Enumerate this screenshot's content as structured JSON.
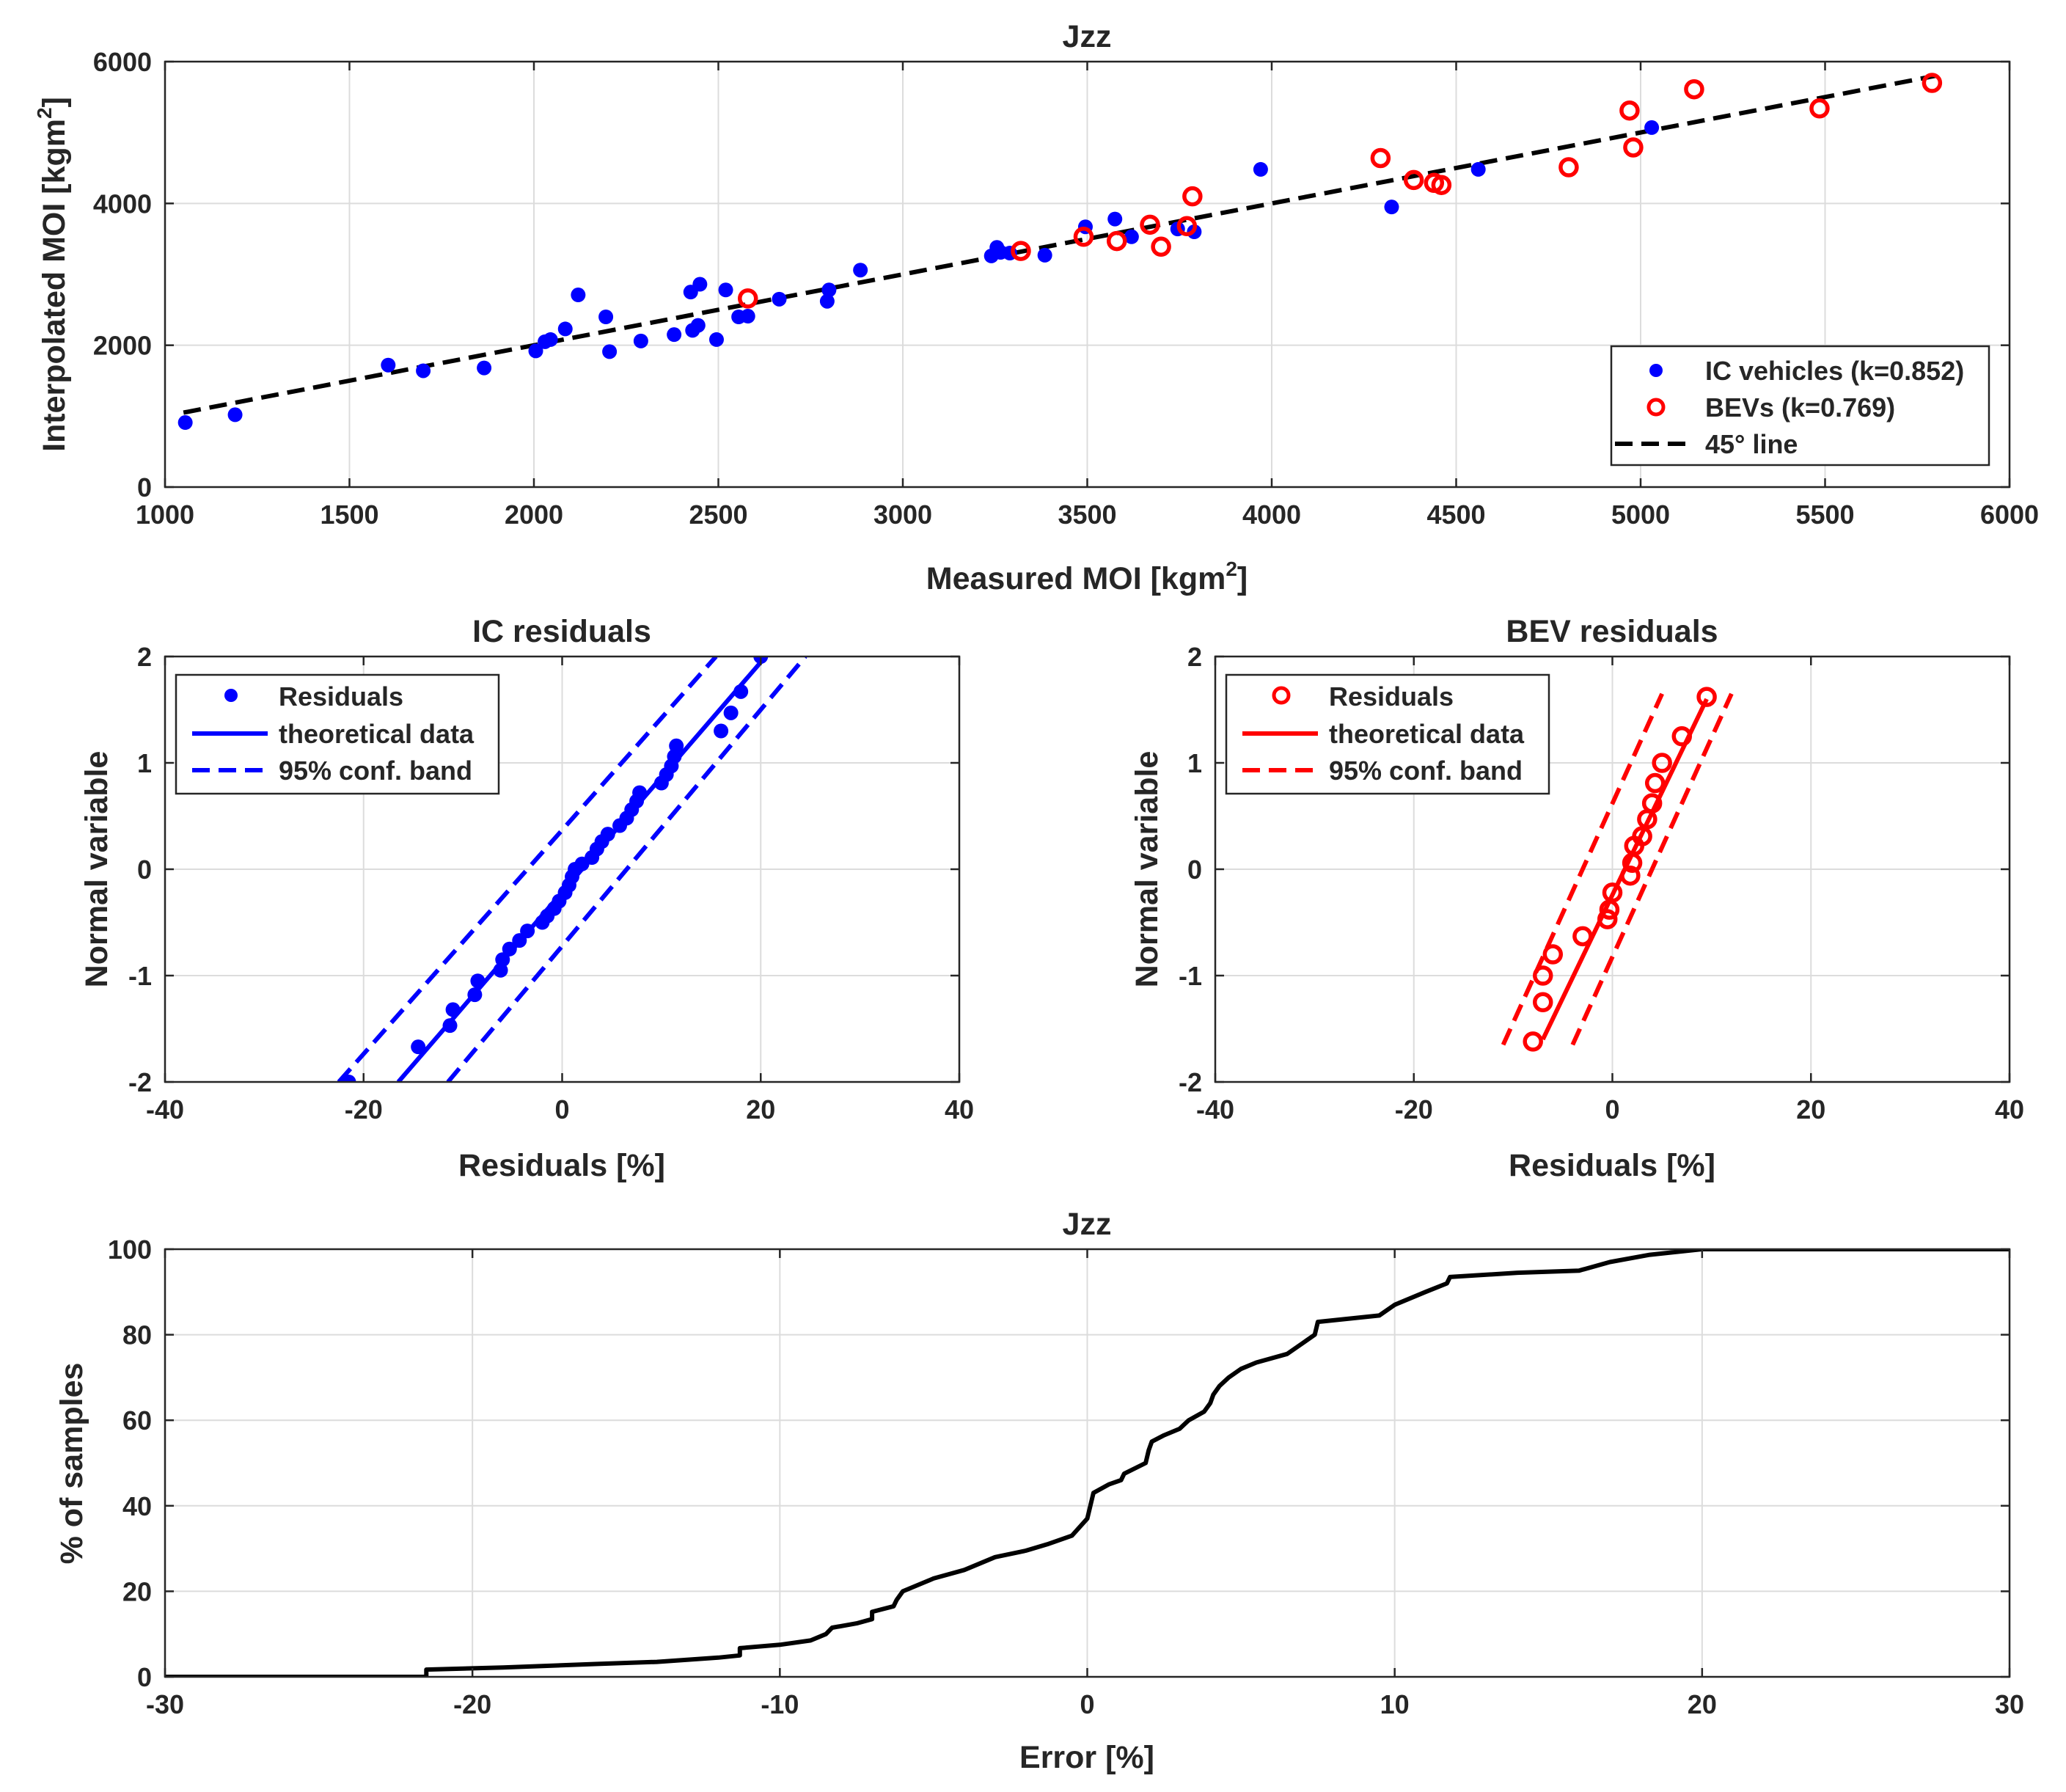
{
  "chart_data": [
    {
      "type": "scatter",
      "title": "Jzz",
      "xlabel": "Measured MOI [kgm",
      "xlabel_sup": "2",
      "xlabel_end": "]",
      "ylabel": "Interpolated MOI [kgm",
      "ylabel_sup": "2",
      "ylabel_end": "]",
      "xlim": [
        1000,
        6000
      ],
      "ylim": [
        0,
        6000
      ],
      "xticks": [
        1000,
        1500,
        2000,
        2500,
        3000,
        3500,
        4000,
        4500,
        5000,
        5500,
        6000
      ],
      "yticks": [
        0,
        2000,
        4000,
        6000
      ],
      "grid": true,
      "legend_position": "bottom-right",
      "series": [
        {
          "name": "IC vehicles (k=0.852)",
          "marker": "filled-circle",
          "color": "#0000ff",
          "points": [
            [
              1055,
              910
            ],
            [
              1190,
              1020
            ],
            [
              1605,
              1720
            ],
            [
              1700,
              1640
            ],
            [
              1865,
              1680
            ],
            [
              2005,
              1920
            ],
            [
              2030,
              2050
            ],
            [
              2045,
              2080
            ],
            [
              2085,
              2230
            ],
            [
              2120,
              2710
            ],
            [
              2195,
              2400
            ],
            [
              2205,
              1910
            ],
            [
              2290,
              2060
            ],
            [
              2380,
              2150
            ],
            [
              2425,
              2750
            ],
            [
              2430,
              2210
            ],
            [
              2445,
              2280
            ],
            [
              2450,
              2860
            ],
            [
              2495,
              2080
            ],
            [
              2520,
              2780
            ],
            [
              2555,
              2400
            ],
            [
              2580,
              2410
            ],
            [
              2665,
              2650
            ],
            [
              2795,
              2620
            ],
            [
              2800,
              2780
            ],
            [
              2885,
              3060
            ],
            [
              3240,
              3260
            ],
            [
              3255,
              3380
            ],
            [
              3265,
              3310
            ],
            [
              3290,
              3300
            ],
            [
              3385,
              3270
            ],
            [
              3495,
              3670
            ],
            [
              3575,
              3780
            ],
            [
              3620,
              3530
            ],
            [
              3745,
              3640
            ],
            [
              3790,
              3600
            ],
            [
              3970,
              4480
            ],
            [
              4325,
              3950
            ],
            [
              4560,
              4480
            ],
            [
              5030,
              5070
            ]
          ]
        },
        {
          "name": "BEVs (k=0.769)",
          "marker": "open-circle",
          "color": "#ff0000",
          "points": [
            [
              2580,
              2660
            ],
            [
              3320,
              3330
            ],
            [
              3490,
              3530
            ],
            [
              3580,
              3470
            ],
            [
              3670,
              3700
            ],
            [
              3700,
              3390
            ],
            [
              3770,
              3680
            ],
            [
              3785,
              4100
            ],
            [
              4295,
              4640
            ],
            [
              4385,
              4330
            ],
            [
              4440,
              4290
            ],
            [
              4460,
              4260
            ],
            [
              4805,
              4510
            ],
            [
              4970,
              5310
            ],
            [
              4980,
              4790
            ],
            [
              5145,
              5610
            ],
            [
              5485,
              5340
            ],
            [
              5790,
              5700
            ]
          ]
        },
        {
          "name": "45° line",
          "style": "dashed",
          "color": "#000000",
          "points": [
            [
              1050,
              1050
            ],
            [
              5800,
              5800
            ]
          ]
        }
      ]
    },
    {
      "type": "scatter",
      "title": "IC residuals",
      "xlabel": "Residuals [%]",
      "ylabel": "Normal variable",
      "xlim": [
        -40,
        40
      ],
      "ylim": [
        -2,
        2
      ],
      "xticks": [
        -40,
        -20,
        0,
        20,
        40
      ],
      "yticks": [
        -2,
        -1,
        0,
        1,
        2
      ],
      "grid": true,
      "legend_position": "top-left",
      "color": "#0000ff",
      "series": [
        {
          "name": "Residuals",
          "marker": "filled-circle",
          "points": [
            [
              -21.5,
              -2.0
            ],
            [
              -14.5,
              -1.67
            ],
            [
              -11.3,
              -1.47
            ],
            [
              -11.0,
              -1.32
            ],
            [
              -8.8,
              -1.18
            ],
            [
              -8.5,
              -1.05
            ],
            [
              -6.2,
              -0.95
            ],
            [
              -6.0,
              -0.85
            ],
            [
              -5.3,
              -0.75
            ],
            [
              -4.3,
              -0.67
            ],
            [
              -3.5,
              -0.58
            ],
            [
              -2.0,
              -0.5
            ],
            [
              -1.5,
              -0.44
            ],
            [
              -0.8,
              -0.37
            ],
            [
              -0.3,
              -0.3
            ],
            [
              0.3,
              -0.22
            ],
            [
              0.7,
              -0.15
            ],
            [
              1.0,
              -0.07
            ],
            [
              1.3,
              0.0
            ],
            [
              2.0,
              0.05
            ],
            [
              3.0,
              0.11
            ],
            [
              3.5,
              0.19
            ],
            [
              4.0,
              0.26
            ],
            [
              4.6,
              0.33
            ],
            [
              5.8,
              0.41
            ],
            [
              6.5,
              0.48
            ],
            [
              7.0,
              0.56
            ],
            [
              7.5,
              0.64
            ],
            [
              7.8,
              0.72
            ],
            [
              10.0,
              0.81
            ],
            [
              10.5,
              0.89
            ],
            [
              11.0,
              0.97
            ],
            [
              11.3,
              1.06
            ],
            [
              11.5,
              1.16
            ],
            [
              16.0,
              1.3
            ],
            [
              17.0,
              1.47
            ],
            [
              18.0,
              1.67
            ],
            [
              20.0,
              2.0
            ]
          ]
        },
        {
          "name": "theoretical data",
          "style": "solid",
          "points": [
            [
              -16.5,
              -2.0
            ],
            [
              20.5,
              2.0
            ]
          ]
        },
        {
          "name": "95% conf. band",
          "style": "dashed",
          "points": [
            [
              -22.5,
              -2.0
            ],
            [
              15.5,
              2.0
            ]
          ]
        },
        {
          "name": "",
          "style": "dashed",
          "points": [
            [
              -11.5,
              -2.0
            ],
            [
              24.5,
              2.0
            ]
          ]
        }
      ]
    },
    {
      "type": "scatter",
      "title": "BEV residuals",
      "xlabel": "Residuals [%]",
      "ylabel": "Normal variable",
      "xlim": [
        -40,
        40
      ],
      "ylim": [
        -2,
        2
      ],
      "xticks": [
        -40,
        -20,
        0,
        20,
        40
      ],
      "yticks": [
        -2,
        -1,
        0,
        1,
        2
      ],
      "grid": true,
      "legend_position": "top-left",
      "color": "#ff0000",
      "series": [
        {
          "name": "Residuals",
          "marker": "open-circle",
          "points": [
            [
              -8.0,
              -1.62
            ],
            [
              -7.0,
              -1.25
            ],
            [
              -7.0,
              -1.0
            ],
            [
              -6.0,
              -0.8
            ],
            [
              -3.0,
              -0.63
            ],
            [
              -0.5,
              -0.47
            ],
            [
              -0.3,
              -0.38
            ],
            [
              0.0,
              -0.22
            ],
            [
              1.8,
              -0.06
            ],
            [
              2.0,
              0.06
            ],
            [
              2.2,
              0.22
            ],
            [
              3.0,
              0.31
            ],
            [
              3.5,
              0.47
            ],
            [
              4.0,
              0.62
            ],
            [
              4.3,
              0.81
            ],
            [
              5.0,
              1.0
            ],
            [
              7.0,
              1.25
            ],
            [
              9.5,
              1.62
            ]
          ]
        },
        {
          "name": "theoretical data",
          "style": "solid",
          "points": [
            [
              -7.0,
              -1.6
            ],
            [
              9.5,
              1.6
            ]
          ]
        },
        {
          "name": "95% conf. band",
          "style": "dashed",
          "points": [
            [
              -11.0,
              -1.65
            ],
            [
              5.0,
              1.65
            ]
          ]
        },
        {
          "name": "",
          "style": "dashed",
          "points": [
            [
              -4.0,
              -1.65
            ],
            [
              12.0,
              1.65
            ]
          ]
        }
      ]
    },
    {
      "type": "line",
      "title": "Jzz",
      "xlabel": "Error [%]",
      "ylabel": "% of samples",
      "xlim": [
        -30,
        30
      ],
      "ylim": [
        0,
        100
      ],
      "xticks": [
        -30,
        -20,
        -10,
        0,
        10,
        20,
        30
      ],
      "yticks": [
        0,
        20,
        40,
        60,
        80,
        100
      ],
      "grid": true,
      "color": "#000000",
      "series": [
        {
          "name": "",
          "points": [
            [
              -30,
              0
            ],
            [
              -21.5,
              0
            ],
            [
              -21.5,
              1.7
            ],
            [
              -19,
              2.2
            ],
            [
              -16,
              3.0
            ],
            [
              -14,
              3.5
            ],
            [
              -12,
              4.5
            ],
            [
              -11.3,
              5.0
            ],
            [
              -11.3,
              6.7
            ],
            [
              -10,
              7.5
            ],
            [
              -9,
              8.5
            ],
            [
              -8.5,
              10
            ],
            [
              -8.3,
              11.5
            ],
            [
              -7.5,
              12.5
            ],
            [
              -7.0,
              13.5
            ],
            [
              -7.0,
              15.2
            ],
            [
              -6.3,
              16.5
            ],
            [
              -6.2,
              18
            ],
            [
              -6.0,
              20
            ],
            [
              -5,
              23
            ],
            [
              -4,
              25
            ],
            [
              -3,
              28
            ],
            [
              -2,
              29.5
            ],
            [
              -1.3,
              31
            ],
            [
              -0.5,
              33
            ],
            [
              0,
              37
            ],
            [
              0.1,
              40
            ],
            [
              0.2,
              43
            ],
            [
              0.7,
              45
            ],
            [
              1.1,
              46
            ],
            [
              1.2,
              47.5
            ],
            [
              1.9,
              50
            ],
            [
              2.0,
              53
            ],
            [
              2.1,
              55
            ],
            [
              2.5,
              56.5
            ],
            [
              3.0,
              58
            ],
            [
              3.3,
              60
            ],
            [
              3.8,
              62
            ],
            [
              4,
              64
            ],
            [
              4.1,
              66
            ],
            [
              4.3,
              68
            ],
            [
              4.6,
              70
            ],
            [
              5.0,
              72
            ],
            [
              5.5,
              73.5
            ],
            [
              6.5,
              75.5
            ],
            [
              7.0,
              78
            ],
            [
              7.4,
              80
            ],
            [
              7.5,
              83
            ],
            [
              9.5,
              84.5
            ],
            [
              10,
              87
            ],
            [
              11.0,
              90
            ],
            [
              11.7,
              92
            ],
            [
              11.8,
              93.5
            ],
            [
              14,
              94.5
            ],
            [
              16,
              95
            ],
            [
              17,
              97
            ],
            [
              18.3,
              98.7
            ],
            [
              20.0,
              100
            ],
            [
              30,
              100
            ]
          ]
        }
      ]
    }
  ]
}
